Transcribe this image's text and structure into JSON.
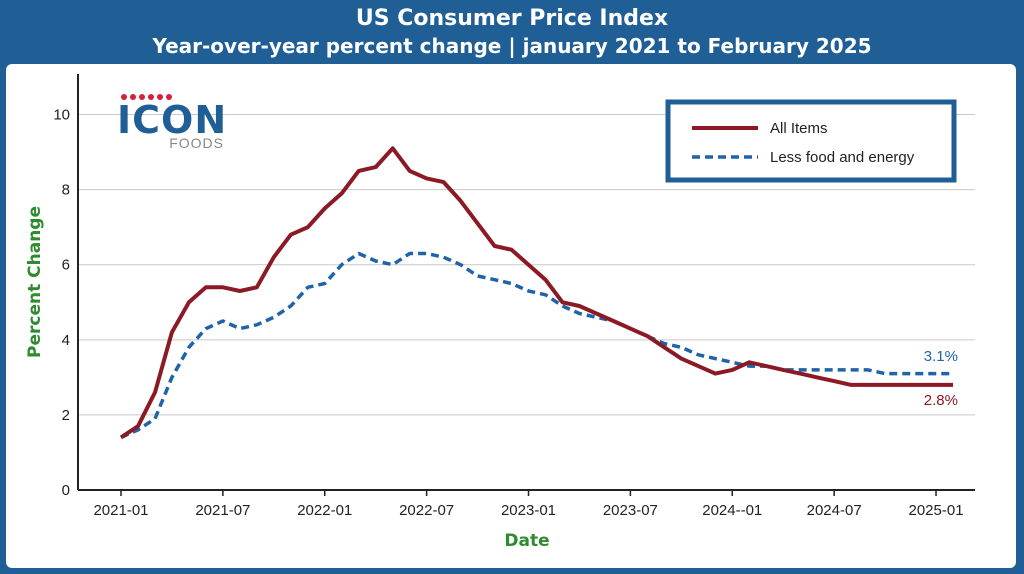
{
  "header": {
    "title": "US Consumer Price Index",
    "subtitle": "Year-over-year percent change | january 2021 to February 2025"
  },
  "logo": {
    "brand": "ICON",
    "tagline": "FOODS",
    "dot_color": "#d71f3a",
    "brand_color": "#1f5f96"
  },
  "colors": {
    "background": "#1f5f96",
    "all_items": "#8b1a24",
    "core": "#1f63a8",
    "axis_label": "#2e8b2e"
  },
  "chart_data": {
    "type": "line",
    "title": "US Consumer Price Index",
    "subtitle": "Year-over-year percent change | january 2021 to February 2025",
    "xlabel": "Date",
    "ylabel": "Percent Change",
    "ylim": [
      0,
      11
    ],
    "yticks": [
      "0",
      "2",
      "4",
      "6",
      "8",
      "10"
    ],
    "xticks": [
      {
        "label": "2021-01",
        "i": 0
      },
      {
        "label": "2021-07",
        "i": 6
      },
      {
        "label": "2022-01",
        "i": 12
      },
      {
        "label": "2022-07",
        "i": 18
      },
      {
        "label": "2023-01",
        "i": 24
      },
      {
        "label": "2023-07",
        "i": 30
      },
      {
        "label": "2024--01",
        "i": 36
      },
      {
        "label": "2024-07",
        "i": 42
      },
      {
        "label": "2025-01",
        "i": 48
      }
    ],
    "grid": "horizontal",
    "legend_position": "top-right",
    "series": [
      {
        "name": "All Items",
        "style": "solid",
        "color": "#8b1a24",
        "end_label": "2.8%",
        "values": [
          1.4,
          1.7,
          2.6,
          4.2,
          5.0,
          5.4,
          5.4,
          5.3,
          5.4,
          6.2,
          6.8,
          7.0,
          7.5,
          7.9,
          8.5,
          8.6,
          9.1,
          8.5,
          8.3,
          8.2,
          7.7,
          7.1,
          6.5,
          6.4,
          6.0,
          5.6,
          5.0,
          4.9,
          4.7,
          4.5,
          4.3,
          4.1,
          3.8,
          3.5,
          3.3,
          3.1,
          3.2,
          3.4,
          3.3,
          3.2,
          3.1,
          3.0,
          2.9,
          2.8,
          2.8,
          2.8,
          2.8,
          2.8,
          2.8,
          2.8
        ]
      },
      {
        "name": "Less food and energy",
        "style": "dashed",
        "color": "#1f63a8",
        "end_label": "3.1%",
        "values": [
          1.4,
          1.6,
          1.9,
          3.0,
          3.8,
          4.3,
          4.5,
          4.3,
          4.4,
          4.6,
          4.9,
          5.4,
          5.5,
          6.0,
          6.3,
          6.1,
          6.0,
          6.3,
          6.3,
          6.2,
          6.0,
          5.7,
          5.6,
          5.5,
          5.3,
          5.2,
          4.9,
          4.7,
          4.6,
          4.5,
          4.3,
          4.1,
          3.9,
          3.8,
          3.6,
          3.5,
          3.4,
          3.3,
          3.3,
          3.2,
          3.2,
          3.2,
          3.2,
          3.2,
          3.2,
          3.1,
          3.1,
          3.1,
          3.1,
          3.1
        ]
      }
    ]
  }
}
